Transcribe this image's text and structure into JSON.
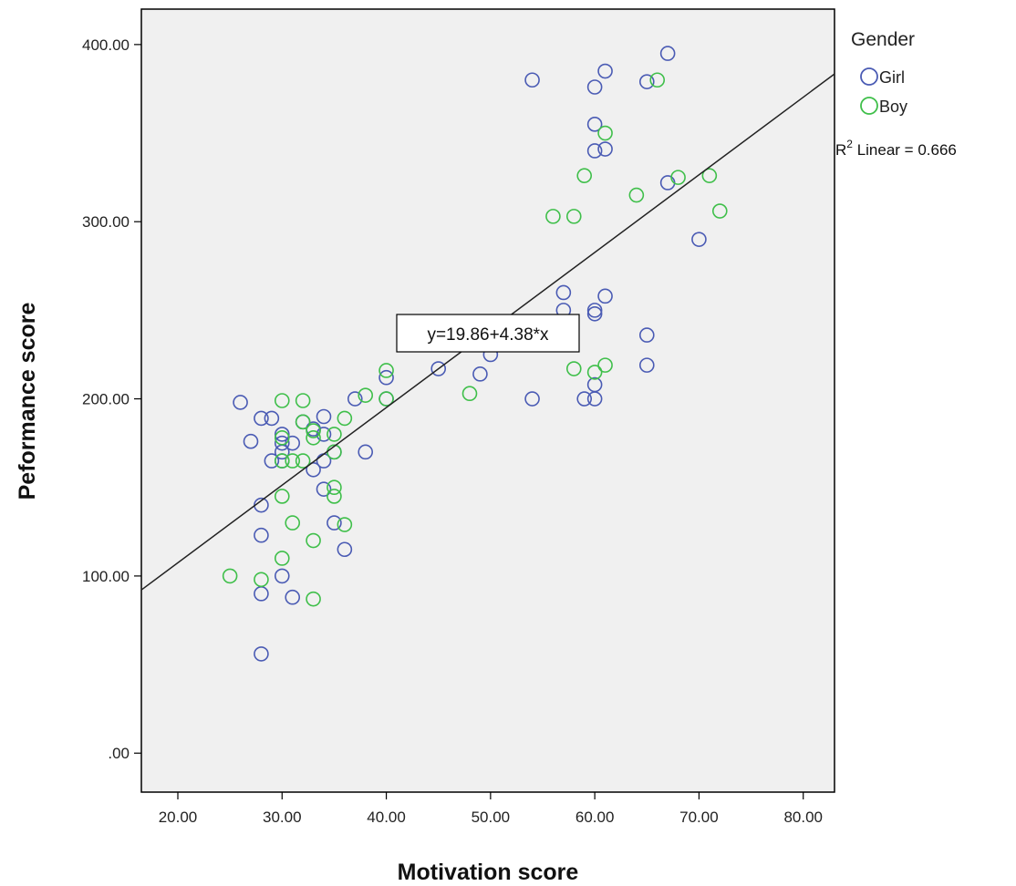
{
  "chart_data": {
    "type": "scatter",
    "xlabel": "Motivation score",
    "ylabel": "Peformance score",
    "xlim": [
      16.5,
      83
    ],
    "ylim": [
      -22,
      420
    ],
    "xticks": [
      "20.00",
      "30.00",
      "40.00",
      "50.00",
      "60.00",
      "70.00",
      "80.00"
    ],
    "xtick_values": [
      20,
      30,
      40,
      50,
      60,
      70,
      80
    ],
    "yticks": [
      ".00",
      "100.00",
      "200.00",
      "300.00",
      "400.00"
    ],
    "ytick_values": [
      0,
      100,
      200,
      300,
      400
    ],
    "grid": false,
    "legend": {
      "title": "Gender",
      "position": "top-right"
    },
    "fit": {
      "intercept": 19.86,
      "slope": 4.38,
      "equation_label": "y=19.86+4.38*x",
      "r2_base": "R",
      "r2_sup": "2",
      "r2_text": " Linear = 0.666"
    },
    "series": [
      {
        "name": "Girl",
        "color": "#4a5bb4",
        "points": [
          [
            26,
            198
          ],
          [
            27,
            176
          ],
          [
            28,
            189
          ],
          [
            28,
            140
          ],
          [
            28,
            123
          ],
          [
            28,
            90
          ],
          [
            28,
            56
          ],
          [
            29,
            189
          ],
          [
            29,
            165
          ],
          [
            30,
            180
          ],
          [
            30,
            175
          ],
          [
            30,
            170
          ],
          [
            30,
            165
          ],
          [
            30,
            100
          ],
          [
            31,
            175
          ],
          [
            31,
            88
          ],
          [
            32,
            187
          ],
          [
            33,
            183
          ],
          [
            33,
            160
          ],
          [
            34,
            190
          ],
          [
            34,
            180
          ],
          [
            34,
            165
          ],
          [
            34,
            149
          ],
          [
            35,
            170
          ],
          [
            35,
            130
          ],
          [
            36,
            115
          ],
          [
            37,
            200
          ],
          [
            38,
            170
          ],
          [
            40,
            212
          ],
          [
            40,
            200
          ],
          [
            45,
            217
          ],
          [
            49,
            214
          ],
          [
            50,
            225
          ],
          [
            54,
            380
          ],
          [
            54,
            200
          ],
          [
            57,
            260
          ],
          [
            57,
            250
          ],
          [
            59,
            200
          ],
          [
            60,
            376
          ],
          [
            60,
            355
          ],
          [
            60,
            340
          ],
          [
            60,
            250
          ],
          [
            60,
            248
          ],
          [
            60,
            208
          ],
          [
            60,
            200
          ],
          [
            61,
            385
          ],
          [
            61,
            341
          ],
          [
            61,
            258
          ],
          [
            65,
            379
          ],
          [
            65,
            236
          ],
          [
            65,
            219
          ],
          [
            67,
            395
          ],
          [
            67,
            322
          ],
          [
            70,
            290
          ]
        ]
      },
      {
        "name": "Boy",
        "color": "#3fbf4a",
        "points": [
          [
            25,
            100
          ],
          [
            28,
            98
          ],
          [
            30,
            199
          ],
          [
            30,
            178
          ],
          [
            30,
            165
          ],
          [
            30,
            145
          ],
          [
            30,
            110
          ],
          [
            31,
            165
          ],
          [
            31,
            130
          ],
          [
            32,
            199
          ],
          [
            32,
            187
          ],
          [
            32,
            165
          ],
          [
            33,
            182
          ],
          [
            33,
            178
          ],
          [
            33,
            120
          ],
          [
            33,
            87
          ],
          [
            35,
            180
          ],
          [
            35,
            170
          ],
          [
            35,
            150
          ],
          [
            35,
            145
          ],
          [
            36,
            189
          ],
          [
            36,
            129
          ],
          [
            38,
            202
          ],
          [
            40,
            216
          ],
          [
            40,
            200
          ],
          [
            48,
            203
          ],
          [
            56,
            303
          ],
          [
            58,
            303
          ],
          [
            58,
            217
          ],
          [
            59,
            326
          ],
          [
            60,
            215
          ],
          [
            61,
            350
          ],
          [
            61,
            219
          ],
          [
            64,
            315
          ],
          [
            66,
            380
          ],
          [
            68,
            325
          ],
          [
            71,
            326
          ],
          [
            72,
            306
          ]
        ]
      }
    ]
  }
}
